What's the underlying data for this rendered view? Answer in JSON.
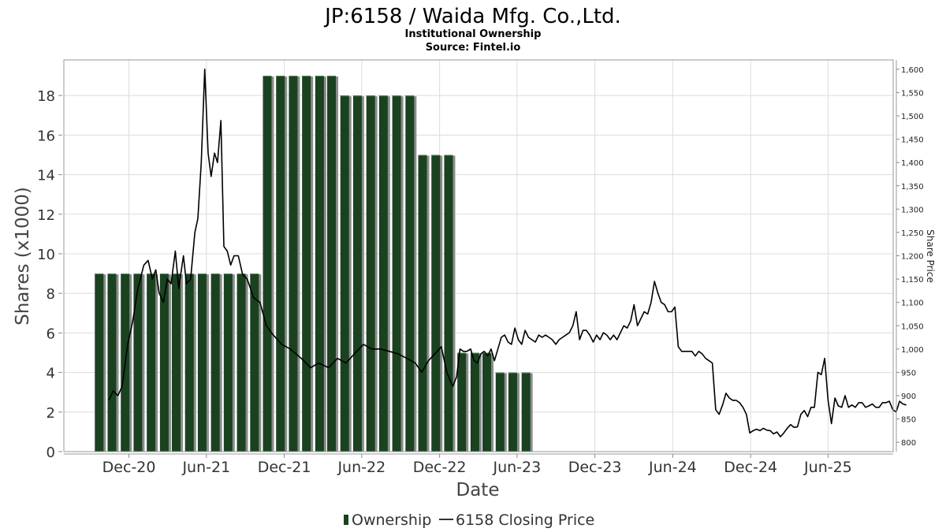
{
  "title": "JP:6158 / Waida Mfg. Co.,Ltd.",
  "subtitle": "Institutional Ownership",
  "source": "Source: Fintel.io",
  "colors": {
    "bar": "#1a4220",
    "bar_shadow": "#8c8c8c",
    "line": "#000000",
    "grid": "#dcdcdc",
    "frame": "#999999"
  },
  "chart_data": {
    "type": "bar",
    "xlabel": "Date",
    "ylabel": "Shares (x1000)",
    "y2label": "Share Price",
    "ylim": [
      0,
      19.8
    ],
    "y2lim": [
      780,
      1620
    ],
    "x_start": "2020-07-01",
    "x_end": "2025-11-01",
    "grid": true,
    "legend_position": "bottom-center",
    "yticks": [
      0,
      2,
      4,
      6,
      8,
      10,
      12,
      14,
      16,
      18
    ],
    "y2ticks": [
      800,
      850,
      900,
      950,
      1000,
      1050,
      1100,
      1150,
      1200,
      1250,
      1300,
      1350,
      1400,
      1450,
      1500,
      1550,
      1600
    ],
    "y2tick_labels": [
      "800",
      "850",
      "900",
      "950",
      "1,000",
      "1,050",
      "1,100",
      "1,150",
      "1,200",
      "1,250",
      "1,300",
      "1,350",
      "1,400",
      "1,450",
      "1,500",
      "1,550",
      "1,600"
    ],
    "xticks": [
      {
        "label": "Dec-20",
        "date": "2020-12-01"
      },
      {
        "label": "Jun-21",
        "date": "2021-06-01"
      },
      {
        "label": "Dec-21",
        "date": "2021-12-01"
      },
      {
        "label": "Jun-22",
        "date": "2022-06-01"
      },
      {
        "label": "Dec-22",
        "date": "2022-12-01"
      },
      {
        "label": "Jun-23",
        "date": "2023-06-01"
      },
      {
        "label": "Dec-23",
        "date": "2023-12-01"
      },
      {
        "label": "Jun-24",
        "date": "2024-06-01"
      },
      {
        "label": "Dec-24",
        "date": "2024-12-01"
      },
      {
        "label": "Jun-25",
        "date": "2025-06-01"
      }
    ],
    "series": [
      {
        "name": "Ownership",
        "kind": "bar",
        "dates": [
          "2020-09-22",
          "2020-10-22",
          "2020-11-22",
          "2020-12-22",
          "2021-01-22",
          "2021-02-22",
          "2021-03-22",
          "2021-04-22",
          "2021-05-22",
          "2021-06-22",
          "2021-07-22",
          "2021-08-22",
          "2021-09-22",
          "2021-10-22",
          "2021-11-22",
          "2021-12-22",
          "2022-01-22",
          "2022-02-22",
          "2022-03-22",
          "2022-04-22",
          "2022-05-22",
          "2022-06-22",
          "2022-07-22",
          "2022-08-22",
          "2022-09-22",
          "2022-10-22",
          "2022-11-22",
          "2022-12-22",
          "2023-01-22",
          "2023-02-22",
          "2023-03-22",
          "2023-04-22",
          "2023-05-22",
          "2023-06-22"
        ],
        "values": [
          9,
          9,
          9,
          9,
          9,
          9,
          9,
          9,
          9,
          9,
          9,
          9,
          9,
          19,
          19,
          19,
          19,
          19,
          19,
          18,
          18,
          18,
          18,
          18,
          18,
          15,
          15,
          15,
          5,
          5,
          5,
          4,
          4,
          4
        ]
      },
      {
        "name": "6158 Closing Price",
        "kind": "line",
        "points": [
          [
            "2020-10-15",
            890
          ],
          [
            "2020-10-25",
            910
          ],
          [
            "2020-11-05",
            900
          ],
          [
            "2020-11-15",
            920
          ],
          [
            "2020-11-28",
            1010
          ],
          [
            "2020-12-10",
            1060
          ],
          [
            "2020-12-22",
            1130
          ],
          [
            "2021-01-05",
            1180
          ],
          [
            "2021-01-15",
            1190
          ],
          [
            "2021-01-25",
            1150
          ],
          [
            "2021-02-02",
            1170
          ],
          [
            "2021-02-10",
            1120
          ],
          [
            "2021-02-20",
            1100
          ],
          [
            "2021-03-01",
            1150
          ],
          [
            "2021-03-10",
            1140
          ],
          [
            "2021-03-20",
            1210
          ],
          [
            "2021-03-28",
            1130
          ],
          [
            "2021-04-08",
            1200
          ],
          [
            "2021-04-15",
            1140
          ],
          [
            "2021-04-25",
            1150
          ],
          [
            "2021-05-05",
            1250
          ],
          [
            "2021-05-12",
            1280
          ],
          [
            "2021-05-20",
            1400
          ],
          [
            "2021-05-28",
            1600
          ],
          [
            "2021-06-05",
            1420
          ],
          [
            "2021-06-12",
            1370
          ],
          [
            "2021-06-20",
            1420
          ],
          [
            "2021-06-27",
            1400
          ],
          [
            "2021-07-05",
            1490
          ],
          [
            "2021-07-12",
            1220
          ],
          [
            "2021-07-20",
            1210
          ],
          [
            "2021-07-28",
            1180
          ],
          [
            "2021-08-05",
            1200
          ],
          [
            "2021-08-15",
            1200
          ],
          [
            "2021-08-25",
            1160
          ],
          [
            "2021-09-05",
            1150
          ],
          [
            "2021-09-20",
            1110
          ],
          [
            "2021-10-05",
            1100
          ],
          [
            "2021-10-20",
            1050
          ],
          [
            "2021-11-05",
            1030
          ],
          [
            "2021-11-25",
            1010
          ],
          [
            "2021-12-15",
            1000
          ],
          [
            "2022-01-10",
            980
          ],
          [
            "2022-02-01",
            960
          ],
          [
            "2022-02-20",
            970
          ],
          [
            "2022-03-15",
            960
          ],
          [
            "2022-04-05",
            980
          ],
          [
            "2022-04-25",
            970
          ],
          [
            "2022-05-15",
            990
          ],
          [
            "2022-06-05",
            1010
          ],
          [
            "2022-06-25",
            1000
          ],
          [
            "2022-07-15",
            1000
          ],
          [
            "2022-08-05",
            995
          ],
          [
            "2022-08-25",
            990
          ],
          [
            "2022-09-15",
            980
          ],
          [
            "2022-10-05",
            970
          ],
          [
            "2022-10-20",
            950
          ],
          [
            "2022-11-05",
            975
          ],
          [
            "2022-11-20",
            990
          ],
          [
            "2022-12-05",
            1005
          ],
          [
            "2022-12-18",
            950
          ],
          [
            "2023-01-01",
            920
          ],
          [
            "2023-01-10",
            940
          ],
          [
            "2023-01-18",
            1000
          ],
          [
            "2023-01-26",
            995
          ],
          [
            "2023-02-03",
            995
          ],
          [
            "2023-02-12",
            1000
          ],
          [
            "2023-02-20",
            975
          ],
          [
            "2023-02-28",
            970
          ],
          [
            "2023-03-08",
            990
          ],
          [
            "2023-03-16",
            995
          ],
          [
            "2023-03-24",
            985
          ],
          [
            "2023-04-01",
            1000
          ],
          [
            "2023-04-09",
            975
          ],
          [
            "2023-04-17",
            1000
          ],
          [
            "2023-04-25",
            1025
          ],
          [
            "2023-05-03",
            1030
          ],
          [
            "2023-05-11",
            1015
          ],
          [
            "2023-05-19",
            1010
          ],
          [
            "2023-05-27",
            1045
          ],
          [
            "2023-06-04",
            1020
          ],
          [
            "2023-06-12",
            1010
          ],
          [
            "2023-06-20",
            1040
          ],
          [
            "2023-06-28",
            1025
          ],
          [
            "2023-07-06",
            1020
          ],
          [
            "2023-07-14",
            1015
          ],
          [
            "2023-07-22",
            1030
          ],
          [
            "2023-07-30",
            1025
          ],
          [
            "2023-08-07",
            1030
          ],
          [
            "2023-08-15",
            1025
          ],
          [
            "2023-08-23",
            1020
          ],
          [
            "2023-08-31",
            1010
          ],
          [
            "2023-09-08",
            1020
          ],
          [
            "2023-09-16",
            1025
          ],
          [
            "2023-09-24",
            1030
          ],
          [
            "2023-10-02",
            1035
          ],
          [
            "2023-10-10",
            1050
          ],
          [
            "2023-10-18",
            1080
          ],
          [
            "2023-10-26",
            1020
          ],
          [
            "2023-11-03",
            1040
          ],
          [
            "2023-11-11",
            1040
          ],
          [
            "2023-11-19",
            1030
          ],
          [
            "2023-11-27",
            1015
          ],
          [
            "2023-12-05",
            1030
          ],
          [
            "2023-12-13",
            1020
          ],
          [
            "2023-12-21",
            1035
          ],
          [
            "2023-12-29",
            1030
          ],
          [
            "2024-01-06",
            1020
          ],
          [
            "2024-01-14",
            1030
          ],
          [
            "2024-01-22",
            1020
          ],
          [
            "2024-01-30",
            1035
          ],
          [
            "2024-02-07",
            1050
          ],
          [
            "2024-02-15",
            1045
          ],
          [
            "2024-02-23",
            1060
          ],
          [
            "2024-03-02",
            1095
          ],
          [
            "2024-03-10",
            1050
          ],
          [
            "2024-03-18",
            1065
          ],
          [
            "2024-03-26",
            1080
          ],
          [
            "2024-04-03",
            1075
          ],
          [
            "2024-04-11",
            1100
          ],
          [
            "2024-04-19",
            1145
          ],
          [
            "2024-04-27",
            1120
          ],
          [
            "2024-05-05",
            1100
          ],
          [
            "2024-05-13",
            1095
          ],
          [
            "2024-05-21",
            1080
          ],
          [
            "2024-05-29",
            1080
          ],
          [
            "2024-06-06",
            1090
          ],
          [
            "2024-06-14",
            1005
          ],
          [
            "2024-06-22",
            995
          ],
          [
            "2024-06-30",
            995
          ],
          [
            "2024-07-08",
            995
          ],
          [
            "2024-07-16",
            995
          ],
          [
            "2024-07-24",
            985
          ],
          [
            "2024-08-01",
            995
          ],
          [
            "2024-08-09",
            990
          ],
          [
            "2024-08-17",
            980
          ],
          [
            "2024-08-25",
            975
          ],
          [
            "2024-09-02",
            970
          ],
          [
            "2024-09-10",
            870
          ],
          [
            "2024-09-18",
            860
          ],
          [
            "2024-09-26",
            880
          ],
          [
            "2024-10-04",
            905
          ],
          [
            "2024-10-12",
            895
          ],
          [
            "2024-10-20",
            890
          ],
          [
            "2024-10-28",
            890
          ],
          [
            "2024-11-05",
            885
          ],
          [
            "2024-11-13",
            875
          ],
          [
            "2024-11-21",
            860
          ],
          [
            "2024-11-29",
            820
          ],
          [
            "2024-12-07",
            825
          ],
          [
            "2024-12-15",
            828
          ],
          [
            "2024-12-23",
            825
          ],
          [
            "2024-12-31",
            830
          ],
          [
            "2025-01-08",
            826
          ],
          [
            "2025-01-16",
            825
          ],
          [
            "2025-01-24",
            818
          ],
          [
            "2025-02-01",
            822
          ],
          [
            "2025-02-09",
            812
          ],
          [
            "2025-02-17",
            820
          ],
          [
            "2025-02-25",
            830
          ],
          [
            "2025-03-05",
            838
          ],
          [
            "2025-03-13",
            832
          ],
          [
            "2025-03-21",
            833
          ],
          [
            "2025-03-29",
            860
          ],
          [
            "2025-04-06",
            868
          ],
          [
            "2025-04-14",
            855
          ],
          [
            "2025-04-22",
            875
          ],
          [
            "2025-04-30",
            875
          ],
          [
            "2025-05-08",
            950
          ],
          [
            "2025-05-16",
            945
          ],
          [
            "2025-05-24",
            980
          ],
          [
            "2025-06-01",
            890
          ],
          [
            "2025-06-09",
            840
          ],
          [
            "2025-06-17",
            895
          ],
          [
            "2025-06-25",
            878
          ],
          [
            "2025-07-03",
            875
          ],
          [
            "2025-07-11",
            900
          ],
          [
            "2025-07-19",
            875
          ],
          [
            "2025-07-27",
            880
          ],
          [
            "2025-08-04",
            875
          ],
          [
            "2025-08-12",
            885
          ],
          [
            "2025-08-20",
            885
          ],
          [
            "2025-08-28",
            875
          ],
          [
            "2025-09-05",
            878
          ],
          [
            "2025-09-13",
            882
          ],
          [
            "2025-09-21",
            875
          ],
          [
            "2025-09-29",
            875
          ],
          [
            "2025-10-07",
            885
          ],
          [
            "2025-10-15",
            885
          ],
          [
            "2025-10-23",
            888
          ],
          [
            "2025-10-31",
            870
          ],
          [
            "2025-11-08",
            865
          ],
          [
            "2025-11-16",
            888
          ],
          [
            "2025-11-24",
            882
          ],
          [
            "2025-12-02",
            880
          ]
        ]
      }
    ]
  },
  "legend": {
    "items": [
      {
        "label": "Ownership",
        "marker": "bar"
      },
      {
        "label": "6158 Closing Price",
        "marker": "line"
      }
    ]
  }
}
